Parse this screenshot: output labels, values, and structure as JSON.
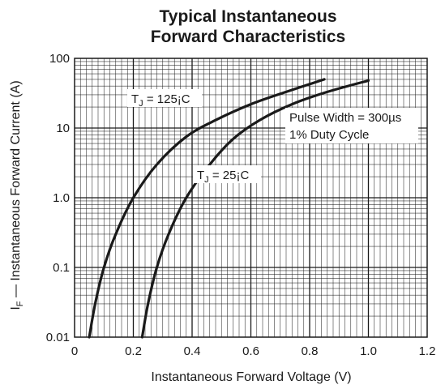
{
  "chart_data": {
    "type": "line",
    "title": [
      "Typical Instantaneous",
      "Forward Characteristics"
    ],
    "xlabel": "Instantaneous Forward Voltage (V)",
    "ylabel": "I",
    "ylabel_sub": "F",
    "ylabel_rest": " — Instantaneous Forward Current (A)",
    "x_scale": "linear",
    "y_scale": "log",
    "xlim": [
      0,
      1.2
    ],
    "ylim": [
      0.01,
      100
    ],
    "x_ticks": [
      0,
      0.2,
      0.4,
      0.6,
      0.8,
      1.0,
      1.2
    ],
    "x_tick_labels": [
      "0",
      "0.2",
      "0.4",
      "0.6",
      "0.8",
      "1.0",
      "1.2"
    ],
    "y_ticks": [
      0.01,
      0.1,
      1,
      10,
      100
    ],
    "y_tick_labels": [
      "0.01",
      "0.1",
      "1.0",
      "10",
      "100"
    ],
    "grid": true,
    "series": [
      {
        "name": "T_J = 125¡C",
        "x": [
          0.05,
          0.07,
          0.1,
          0.14,
          0.2,
          0.28,
          0.38,
          0.48,
          0.6,
          0.72,
          0.85
        ],
        "y": [
          0.01,
          0.03,
          0.1,
          0.3,
          1.0,
          3.0,
          7.5,
          13,
          22,
          33,
          50
        ]
      },
      {
        "name": "T_J = 25¡C",
        "x": [
          0.23,
          0.25,
          0.28,
          0.32,
          0.38,
          0.46,
          0.54,
          0.63,
          0.74,
          0.86,
          1.0
        ],
        "y": [
          0.01,
          0.03,
          0.1,
          0.3,
          1.0,
          3.0,
          7.0,
          13,
          22,
          33,
          48
        ]
      }
    ],
    "annotations": [
      {
        "id": "tj125",
        "main": "T",
        "sub": "J",
        "rest": " = 125¡C"
      },
      {
        "id": "tj25",
        "main": "T",
        "sub": "J",
        "rest": " = 25¡C"
      },
      {
        "id": "pulse",
        "lines": [
          "Pulse Width = 300µs",
          "1% Duty Cycle"
        ]
      }
    ],
    "colors": {
      "curve": "#1a1a1a",
      "grid": "#1a1a1a",
      "background": "#ffffff"
    }
  }
}
